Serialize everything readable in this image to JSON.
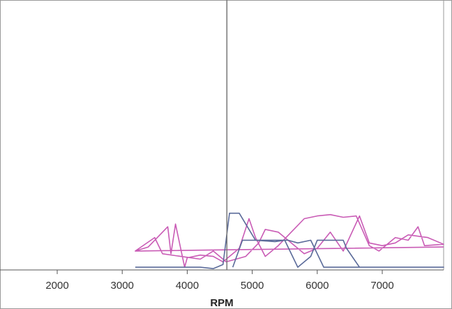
{
  "chart_data": {
    "type": "line",
    "xlabel": "RPM",
    "xlim": [
      1120,
      7944
    ],
    "ylim": [
      0,
      100
    ],
    "xticks": [
      2000,
      3000,
      4000,
      5000,
      6000,
      7000
    ],
    "cursor": 4610,
    "series": [
      {
        "color": "#c95bb5",
        "x": [
          3200,
          3400,
          3700,
          3750,
          3820,
          3960,
          4000,
          4200,
          4400,
          4550,
          4800,
          4950,
          5050,
          5200,
          5400,
          5600,
          5800,
          6000,
          6200,
          6400,
          6600,
          6800,
          6950,
          7200,
          7400,
          7550,
          7650,
          7944,
          7700,
          7400,
          7200,
          7000,
          6800,
          6650,
          6400,
          6200,
          6000,
          5800,
          5400,
          5200,
          5100,
          4900,
          4600,
          4400,
          4200,
          3900,
          3620,
          3500,
          3200,
          7944
        ],
        "y": [
          7,
          8.5,
          16,
          6,
          17,
          1,
          4.5,
          5.5,
          5,
          3,
          8,
          19,
          12,
          5,
          9,
          14,
          19,
          20,
          20.5,
          19.5,
          20,
          9,
          7,
          12,
          11,
          16,
          9,
          9.5,
          12,
          13,
          10,
          9,
          10,
          20,
          7,
          14,
          8,
          6,
          14,
          15,
          10,
          5,
          3,
          7,
          4,
          5,
          6,
          12,
          7,
          8.5
        ]
      },
      {
        "color": "#5a6a99",
        "x": [
          3200,
          4200,
          4400,
          4550,
          4650,
          4800,
          4900,
          5050,
          5350,
          5500,
          5700,
          5900,
          6000,
          6400,
          6450,
          6650,
          7944,
          6100,
          5900,
          5700,
          5550,
          4850,
          4700
        ],
        "y": [
          1,
          1,
          0.5,
          2,
          21,
          21,
          17,
          11,
          10.5,
          11,
          1,
          5,
          11,
          11,
          8,
          1,
          1,
          1,
          11,
          10,
          11,
          11,
          1
        ]
      }
    ]
  }
}
